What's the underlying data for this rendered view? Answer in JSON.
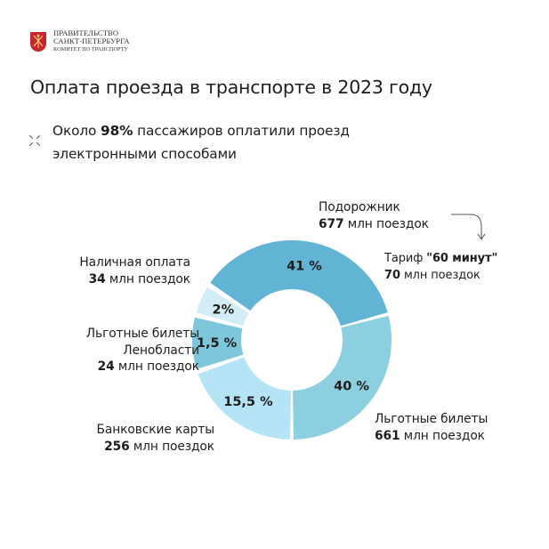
{
  "header": {
    "org_line1": "ПРАВИТЕЛЬСТВО",
    "org_line2": "САНКТ-ПЕТЕРБУРГА",
    "org_line3": "КОМИТЕТ ПО ТРАНСПОРТУ",
    "emblem_color": "#c8262c"
  },
  "title": "Оплата проезда в транспорте в 2023 году",
  "lead": {
    "prefix": "Около ",
    "highlight": "98%",
    "suffix_line1": " пассажиров оплатили проезд",
    "line2": "электронными способами",
    "icon": "sparkle-icon"
  },
  "labels": {
    "podorozhnik": {
      "name": "Подорожник",
      "value": "677",
      "unit": " млн поездок"
    },
    "tariff60": {
      "name_prefix": "Тариф ",
      "name_bold": "\"60 минут\"",
      "value": "70",
      "unit": " млн поездок"
    },
    "lgotnye": {
      "name": "Льготные билеты",
      "value": "661",
      "unit": " млн поездок"
    },
    "bank": {
      "name": "Банковские карты",
      "value": "256",
      "unit": " млн поездок"
    },
    "lenoblast": {
      "name1": "Льготные билеты",
      "name2": "Ленобласти",
      "value": "24",
      "unit": " млн поездок"
    },
    "cash": {
      "name": "Наличная оплата",
      "value": "34",
      "unit": " млн поездок"
    }
  },
  "chart_data": {
    "type": "pie",
    "subtype": "donut",
    "title": "Оплата проезда в транспорте в 2023 году",
    "categories": [
      "Подорожник",
      "Льготные билеты",
      "Банковские карты",
      "Льготные билеты Ленобласти",
      "Наличная оплата"
    ],
    "values": [
      41,
      40,
      15.5,
      1.5,
      2
    ],
    "value_labels": [
      "41 %",
      "40 %",
      "15,5 %",
      "1,5 %",
      "2%"
    ],
    "trips_mln": [
      677,
      661,
      256,
      24,
      34
    ],
    "annotations": [
      {
        "text": "Тариф \"60 минут\" 70 млн поездок",
        "attached_to": "Подорожник"
      },
      {
        "text": "Около 98% пассажиров оплатили проезд электронными способами"
      }
    ],
    "colors": [
      "#62b4d4",
      "#8ccfe0",
      "#b5e4f6",
      "#7ec7da",
      "#d3edf8"
    ],
    "segments_geometry": {
      "center": [
        328,
        382
      ],
      "inner_radius": 57,
      "arcs": [
        {
          "start": -55,
          "end": 74,
          "outer": 112
        },
        {
          "start": 76,
          "end": 179,
          "outer": 112
        },
        {
          "start": 181,
          "end": 250,
          "outer": 112
        },
        {
          "start": 253,
          "end": 283,
          "outer": 112
        },
        {
          "start": 286,
          "end": 302,
          "outer": 112
        }
      ]
    },
    "legend": "none (direct labels)"
  }
}
